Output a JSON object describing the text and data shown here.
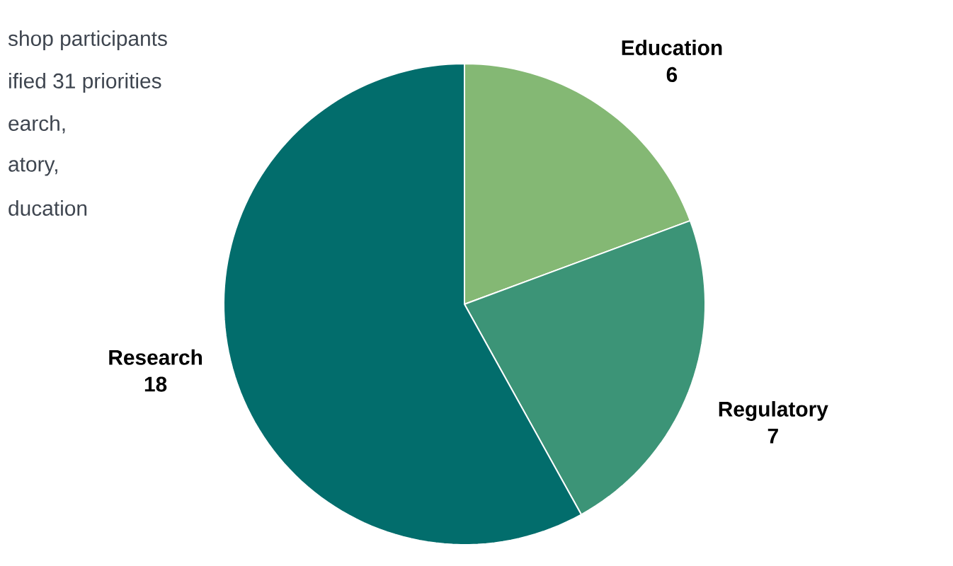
{
  "chart_data": {
    "type": "pie",
    "categories": [
      "Education",
      "Regulatory",
      "Research"
    ],
    "values": [
      6,
      7,
      18
    ],
    "colors": [
      "#84b874",
      "#3c9477",
      "#026d6c"
    ],
    "data_labels": true,
    "annotations": [
      "shop participants",
      "ified 31 priorities",
      "earch,",
      "atory,",
      "ducation"
    ]
  }
}
